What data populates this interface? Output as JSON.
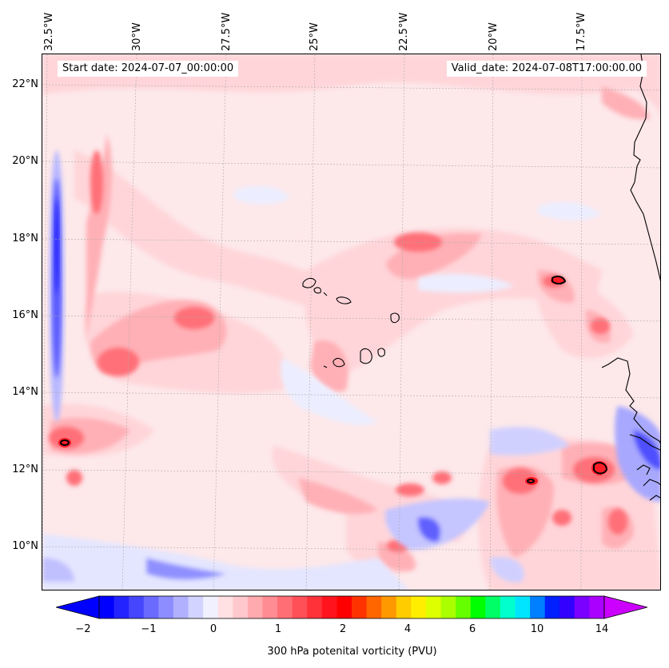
{
  "map": {
    "start_date": "Start date: 2024-07-07_00:00:00",
    "valid_date": "Valid_date: 2024-07-08T17:00:00.00",
    "lon_labels": [
      "32.5°W",
      "30°W",
      "27.5°W",
      "25°W",
      "22.5°W",
      "20°W",
      "17.5°W"
    ],
    "lat_labels": [
      "22°N",
      "20°N",
      "18°N",
      "16°N",
      "14°N",
      "12°N",
      "10°N"
    ],
    "extent": {
      "lon": [
        -32.6,
        -15.1
      ],
      "lat": [
        8.9,
        22.8
      ]
    }
  },
  "colorbar": {
    "ticks": [
      "−2",
      "−1",
      "0",
      "1",
      "2",
      "4",
      "6",
      "10",
      "14"
    ],
    "label": "300 hPa potenital vorticity (PVU)",
    "colors": [
      "#0000ff",
      "#2323ff",
      "#4646ff",
      "#6a6aff",
      "#8d8dff",
      "#b0b0ff",
      "#d3d3ff",
      "#f0f0ff",
      "#ffe0e3",
      "#ffc8cc",
      "#ffaaaf",
      "#ff8c92",
      "#ff6e75",
      "#ff5058",
      "#ff323a",
      "#ff141d",
      "#ff0000",
      "#ff3300",
      "#ff6600",
      "#ff9900",
      "#ffcc00",
      "#ffee00",
      "#ddff00",
      "#aaff00",
      "#66ff00",
      "#00ff00",
      "#00ff66",
      "#00ffcc",
      "#00e5ff",
      "#0080ff",
      "#0020ff",
      "#3300ff",
      "#7a00ff",
      "#aa00ff"
    ]
  }
}
